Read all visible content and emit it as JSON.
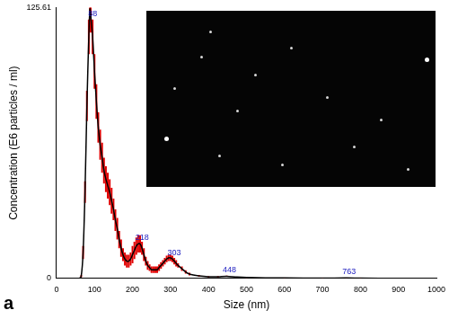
{
  "chart_data": {
    "type": "line",
    "x_label": "Size (nm)",
    "y_label": "Concentration (E6 particles / ml)",
    "panel_label": "a",
    "color": "#000000",
    "error_color": "#e00000",
    "peak_label_color": "#2020c0",
    "x": [
      0,
      50,
      60,
      65,
      70,
      75,
      80,
      85,
      88,
      90,
      95,
      100,
      105,
      110,
      115,
      120,
      125,
      130,
      135,
      140,
      145,
      150,
      155,
      160,
      165,
      170,
      175,
      180,
      185,
      190,
      195,
      200,
      205,
      210,
      215,
      220,
      225,
      230,
      235,
      240,
      245,
      250,
      255,
      260,
      265,
      270,
      275,
      280,
      285,
      290,
      295,
      300,
      305,
      310,
      315,
      320,
      330,
      340,
      350,
      375,
      400,
      425,
      448,
      475,
      500,
      600,
      700,
      763,
      800,
      900,
      1000
    ],
    "values": [
      0,
      0,
      0,
      1,
      12,
      40,
      80,
      112,
      125,
      122,
      112,
      96,
      82,
      70,
      62,
      56,
      50,
      46,
      43,
      40,
      36,
      32,
      27,
      23,
      18,
      14,
      11,
      9,
      8,
      8,
      9,
      11,
      13,
      15,
      16,
      16,
      14,
      11,
      8,
      6,
      5,
      4,
      4,
      4,
      4,
      5,
      6,
      7,
      8,
      9,
      9.5,
      9.5,
      9,
      8,
      7,
      6,
      4.5,
      3,
      2,
      1.2,
      0.8,
      0.8,
      1,
      0.6,
      0.4,
      0.2,
      0.1,
      0.2,
      0.1,
      0,
      0
    ],
    "error": [
      0,
      0,
      0,
      0.5,
      3,
      5,
      7,
      8,
      8,
      8,
      8,
      8,
      8,
      7,
      7,
      7,
      6,
      6,
      6,
      6,
      6,
      5,
      5,
      5,
      4,
      4,
      3,
      3,
      3,
      3,
      3,
      4,
      4,
      4,
      4,
      4,
      3,
      3,
      2,
      2,
      1.5,
      1.5,
      1.5,
      1.5,
      1.5,
      1.5,
      1.5,
      1.5,
      1.5,
      1.5,
      1.5,
      1.5,
      1.5,
      1.5,
      1.5,
      1,
      1,
      0.8,
      0.6,
      0.4,
      0.3,
      0.3,
      0.3,
      0.2,
      0.2,
      0.1,
      0.1,
      0.1,
      0.1,
      0,
      0
    ],
    "peaks": [
      88,
      218,
      303,
      448,
      763
    ],
    "xlim": [
      0,
      1000
    ],
    "xticks": [
      0,
      100,
      200,
      300,
      400,
      500,
      600,
      700,
      800,
      900,
      1000
    ],
    "ylim": [
      0,
      125.61
    ],
    "yticks": [
      0,
      125.61
    ],
    "grid": false
  }
}
